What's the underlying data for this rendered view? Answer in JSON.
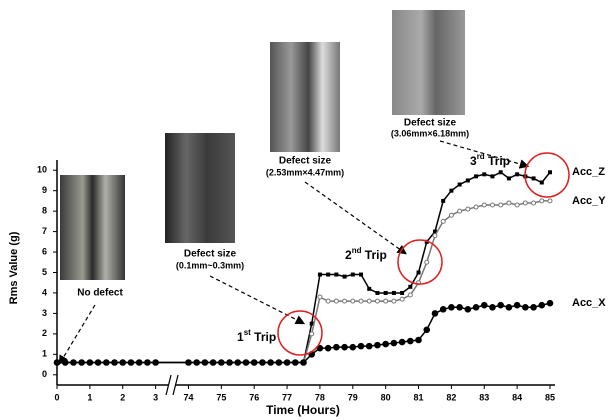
{
  "chart_data": {
    "type": "line",
    "ylabel": "Rms Value (g)",
    "xlabel": "Time (Hours)",
    "x": [
      0,
      0.25,
      0.5,
      0.75,
      1,
      1.25,
      1.5,
      1.75,
      2,
      2.25,
      2.5,
      2.75,
      3,
      74,
      74.25,
      74.5,
      74.75,
      75,
      75.25,
      75.5,
      75.75,
      76,
      76.25,
      76.5,
      76.75,
      77,
      77.25,
      77.5,
      77.75,
      78,
      78.25,
      78.5,
      78.75,
      79,
      79.25,
      79.5,
      79.75,
      80,
      80.25,
      80.5,
      80.75,
      81,
      81.25,
      81.5,
      81.75,
      82,
      82.25,
      82.5,
      82.75,
      83,
      83.25,
      83.5,
      83.75,
      84,
      84.25,
      84.5,
      84.75,
      85
    ],
    "series": [
      {
        "name": "Acc_Z",
        "color": "#000000",
        "marker": "square",
        "values": [
          0.6,
          0.6,
          0.6,
          0.6,
          0.6,
          0.6,
          0.6,
          0.6,
          0.6,
          0.6,
          0.6,
          0.6,
          0.6,
          0.6,
          0.6,
          0.6,
          0.6,
          0.6,
          0.6,
          0.6,
          0.6,
          0.6,
          0.6,
          0.6,
          0.6,
          0.6,
          0.6,
          0.6,
          2.5,
          4.9,
          4.9,
          4.9,
          4.8,
          4.9,
          4.9,
          4.2,
          4.0,
          4.0,
          4.0,
          4.0,
          4.3,
          5.0,
          6.5,
          7.0,
          8.5,
          9.0,
          9.3,
          9.5,
          9.7,
          9.8,
          9.7,
          9.9,
          9.6,
          9.8,
          9.7,
          9.6,
          9.4,
          9.9
        ]
      },
      {
        "name": "Acc_Y",
        "color": "#777777",
        "marker": "open-circle",
        "values": [
          0.6,
          0.6,
          0.6,
          0.6,
          0.6,
          0.6,
          0.6,
          0.6,
          0.6,
          0.6,
          0.6,
          0.6,
          0.6,
          0.6,
          0.6,
          0.6,
          0.6,
          0.6,
          0.6,
          0.6,
          0.6,
          0.6,
          0.6,
          0.6,
          0.6,
          0.6,
          0.6,
          0.6,
          2.0,
          3.8,
          3.6,
          3.6,
          3.6,
          3.6,
          3.6,
          3.6,
          3.6,
          3.6,
          3.6,
          3.7,
          3.9,
          4.5,
          5.5,
          6.8,
          7.5,
          7.8,
          8.0,
          8.1,
          8.2,
          8.3,
          8.3,
          8.3,
          8.4,
          8.3,
          8.4,
          8.4,
          8.5,
          8.5
        ]
      },
      {
        "name": "Acc_X",
        "color": "#000000",
        "marker": "circle",
        "values": [
          0.6,
          0.6,
          0.6,
          0.6,
          0.6,
          0.6,
          0.6,
          0.6,
          0.6,
          0.6,
          0.6,
          0.6,
          0.6,
          0.6,
          0.6,
          0.6,
          0.6,
          0.6,
          0.6,
          0.6,
          0.6,
          0.6,
          0.6,
          0.6,
          0.6,
          0.6,
          0.6,
          0.6,
          1.0,
          1.3,
          1.3,
          1.35,
          1.35,
          1.35,
          1.4,
          1.4,
          1.45,
          1.5,
          1.55,
          1.6,
          1.65,
          1.7,
          2.2,
          3.0,
          3.2,
          3.3,
          3.3,
          3.2,
          3.3,
          3.4,
          3.3,
          3.4,
          3.3,
          3.4,
          3.3,
          3.3,
          3.4,
          3.5
        ]
      }
    ],
    "xlim": [
      0,
      85
    ],
    "xticks": [
      0,
      1,
      2,
      3,
      74,
      75,
      76,
      77,
      78,
      79,
      80,
      81,
      82,
      83,
      84,
      85
    ],
    "ylim": [
      -0.5,
      10.5
    ],
    "yticks": [
      0,
      1,
      2,
      3,
      4,
      5,
      6,
      7,
      8,
      9,
      10
    ],
    "annotations": {
      "no_defect": "No defect",
      "defect1": {
        "title": "Defect size",
        "size": "(0.1mm~0.3mm)"
      },
      "defect2": {
        "title": "Defect size",
        "size": "(2.53mm×4.47mm)"
      },
      "defect3": {
        "title": "Defect size",
        "size": "(3.06mm×6.18mm)"
      },
      "trip1": {
        "number": "1",
        "suffix": "st",
        "text": " Trip"
      },
      "trip2": {
        "number": "2",
        "suffix": "nd",
        "text": " Trip"
      },
      "trip3": {
        "number": "3",
        "suffix": "rd",
        "text": " Trip"
      }
    }
  }
}
